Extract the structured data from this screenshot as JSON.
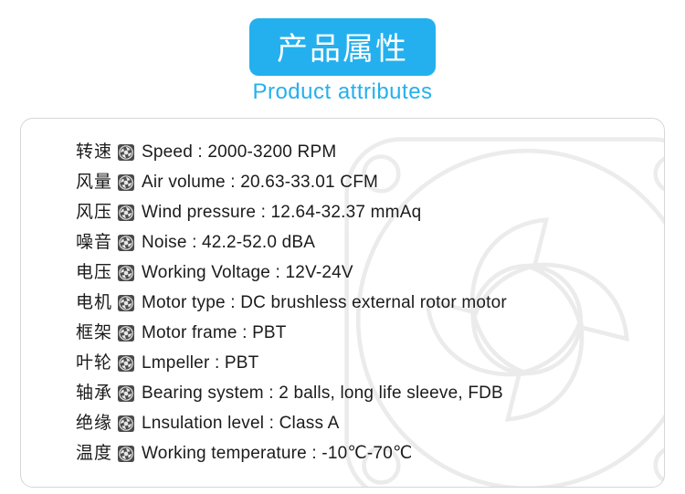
{
  "heading": {
    "title_cn": "产品属性",
    "subtitle_en": "Product attributes",
    "pill_bg": "#24b0ee",
    "pill_text_color": "#ffffff",
    "subtitle_color": "#24b0ee"
  },
  "card": {
    "border_color": "#d6d6d6",
    "border_radius": 14,
    "background": "#ffffff",
    "watermark_opacity": 0.14
  },
  "bullet": {
    "bg": "#4a4a4a",
    "fg": "#e8e8e8"
  },
  "rows": [
    {
      "cn": "转速",
      "en": "Speed : 2000-3200 RPM"
    },
    {
      "cn": "风量",
      "en": "Air volume : 20.63-33.01 CFM"
    },
    {
      "cn": "风压",
      "en": "Wind pressure : 12.64-32.37 mmAq"
    },
    {
      "cn": "噪音",
      "en": "Noise : 42.2-52.0 dBA"
    },
    {
      "cn": "电压",
      "en": "Working Voltage :  12V-24V"
    },
    {
      "cn": "电机",
      "en": "Motor type : DC brushless external rotor motor"
    },
    {
      "cn": "框架",
      "en": "Motor frame : PBT"
    },
    {
      "cn": "叶轮",
      "en": "Lmpeller : PBT"
    },
    {
      "cn": "轴承",
      "en": "Bearing system : 2 balls, long life sleeve, FDB"
    },
    {
      "cn": "绝缘",
      "en": "Lnsulation  level : Class A"
    },
    {
      "cn": "温度",
      "en": "Working temperature : -10℃-70℃"
    }
  ]
}
